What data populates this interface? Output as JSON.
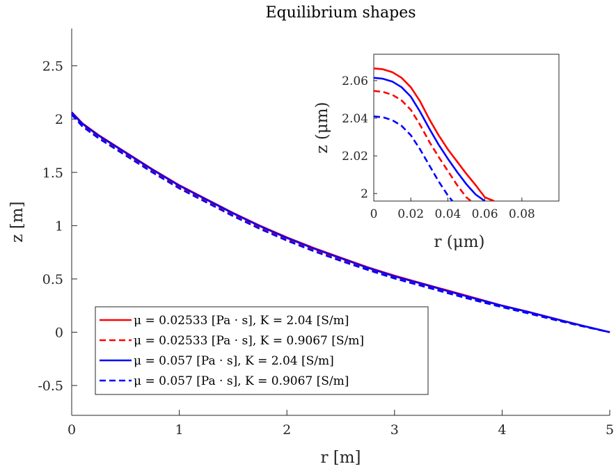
{
  "chart_data": [
    {
      "type": "line",
      "title": "Equilibrium shapes",
      "xlabel": "r [m]",
      "ylabel": "z [m]",
      "xlim": [
        0,
        5
      ],
      "ylim": [
        -0.78,
        2.85
      ],
      "xticks": [
        0,
        1,
        2,
        3,
        4,
        5
      ],
      "xtick_labels": [
        "0",
        "1",
        "2",
        "3",
        "4",
        "5"
      ],
      "yticks": [
        -0.5,
        0,
        0.5,
        1,
        1.5,
        2,
        2.5
      ],
      "ytick_labels": [
        "-0.5",
        "0",
        "0.5",
        "1",
        "1.5",
        "2",
        "2.5"
      ],
      "grid": false,
      "legend_position": "lower-left",
      "series": [
        {
          "name": "μ = 0.02533 [Pa · s], K = 2.04 [S/m]",
          "color": "#ff0000",
          "dash": "solid",
          "x": [
            0,
            0.1,
            0.25,
            0.5,
            0.75,
            1,
            1.25,
            1.5,
            1.75,
            2,
            2.25,
            2.5,
            2.75,
            3,
            3.25,
            3.5,
            3.75,
            4,
            4.25,
            4.5,
            4.75,
            5
          ],
          "y": [
            2.066,
            1.96,
            1.85,
            1.69,
            1.53,
            1.38,
            1.25,
            1.12,
            1.0,
            0.89,
            0.79,
            0.7,
            0.61,
            0.53,
            0.46,
            0.39,
            0.32,
            0.25,
            0.19,
            0.125,
            0.06,
            0.0
          ]
        },
        {
          "name": "μ = 0.02533 [Pa · s], K = 0.9067 [S/m]",
          "color": "#ff0000",
          "dash": "dashed",
          "x": [
            0,
            0.1,
            0.25,
            0.5,
            0.75,
            1,
            1.25,
            1.5,
            1.75,
            2,
            2.25,
            2.5,
            2.75,
            3,
            3.25,
            3.5,
            3.75,
            4,
            4.25,
            4.5,
            4.75,
            5
          ],
          "y": [
            2.055,
            1.945,
            1.835,
            1.675,
            1.515,
            1.365,
            1.235,
            1.105,
            0.985,
            0.875,
            0.775,
            0.685,
            0.6,
            0.52,
            0.45,
            0.38,
            0.31,
            0.245,
            0.185,
            0.12,
            0.058,
            0.0
          ]
        },
        {
          "name": "μ = 0.057 [Pa · s], K = 2.04 [S/m]",
          "color": "#0000ff",
          "dash": "solid",
          "x": [
            0,
            0.1,
            0.25,
            0.5,
            0.75,
            1,
            1.25,
            1.5,
            1.75,
            2,
            2.25,
            2.5,
            2.75,
            3,
            3.25,
            3.5,
            3.75,
            4,
            4.25,
            4.5,
            4.75,
            5
          ],
          "y": [
            2.061,
            1.955,
            1.845,
            1.685,
            1.525,
            1.375,
            1.245,
            1.115,
            0.995,
            0.885,
            0.785,
            0.695,
            0.605,
            0.525,
            0.455,
            0.385,
            0.315,
            0.248,
            0.188,
            0.123,
            0.06,
            0.0
          ]
        },
        {
          "name": "μ = 0.057 [Pa · s], K = 0.9067 [S/m]",
          "color": "#0000ff",
          "dash": "dashed",
          "x": [
            0,
            0.1,
            0.25,
            0.5,
            0.75,
            1,
            1.25,
            1.5,
            1.75,
            2,
            2.25,
            2.5,
            2.75,
            3,
            3.25,
            3.5,
            3.75,
            4,
            4.25,
            4.5,
            4.75,
            5
          ],
          "y": [
            2.041,
            1.93,
            1.82,
            1.66,
            1.5,
            1.35,
            1.22,
            1.09,
            0.97,
            0.86,
            0.76,
            0.67,
            0.585,
            0.505,
            0.435,
            0.365,
            0.298,
            0.235,
            0.175,
            0.113,
            0.055,
            0.0
          ]
        }
      ]
    },
    {
      "type": "line",
      "title": "",
      "xlabel": "r (μm)",
      "ylabel": "z (μm)",
      "xlim": [
        0,
        0.1
      ],
      "ylim": [
        1.996,
        2.074
      ],
      "xticks": [
        0,
        0.02,
        0.04,
        0.06,
        0.08
      ],
      "xtick_labels": [
        "0",
        "0.02",
        "0.04",
        "0.06",
        "0.08"
      ],
      "yticks": [
        2,
        2.02,
        2.04,
        2.06
      ],
      "ytick_labels": [
        "2",
        "2.02",
        "2.04",
        "2.06"
      ],
      "grid": false,
      "legend_position": "none",
      "series": [
        {
          "color": "#ff0000",
          "dash": "solid",
          "x": [
            0,
            0.005,
            0.01,
            0.015,
            0.02,
            0.025,
            0.03,
            0.035,
            0.04,
            0.045,
            0.05,
            0.055,
            0.06,
            0.065
          ],
          "y": [
            2.0665,
            2.066,
            2.0645,
            2.0615,
            2.0565,
            2.049,
            2.0395,
            2.031,
            2.0235,
            2.017,
            2.0105,
            2.0045,
            1.998,
            1.996
          ]
        },
        {
          "color": "#ff0000",
          "dash": "dashed",
          "x": [
            0,
            0.005,
            0.01,
            0.015,
            0.02,
            0.025,
            0.03,
            0.035,
            0.04,
            0.045,
            0.05,
            0.0525
          ],
          "y": [
            2.0545,
            2.054,
            2.0525,
            2.0495,
            2.0445,
            2.0365,
            2.0275,
            2.0195,
            2.012,
            2.0045,
            1.998,
            1.996
          ]
        },
        {
          "color": "#0000ff",
          "dash": "solid",
          "x": [
            0,
            0.005,
            0.01,
            0.015,
            0.02,
            0.025,
            0.03,
            0.035,
            0.04,
            0.045,
            0.05,
            0.055,
            0.06
          ],
          "y": [
            2.0615,
            2.061,
            2.0595,
            2.0565,
            2.0515,
            2.0435,
            2.0345,
            2.026,
            2.0185,
            2.0115,
            2.005,
            1.9995,
            1.996
          ]
        },
        {
          "color": "#0000ff",
          "dash": "dashed",
          "x": [
            0,
            0.005,
            0.01,
            0.015,
            0.02,
            0.025,
            0.03,
            0.035,
            0.04,
            0.0425
          ],
          "y": [
            2.041,
            2.0405,
            2.039,
            2.036,
            2.031,
            2.0235,
            2.015,
            2.0065,
            1.999,
            1.996
          ]
        }
      ]
    }
  ]
}
